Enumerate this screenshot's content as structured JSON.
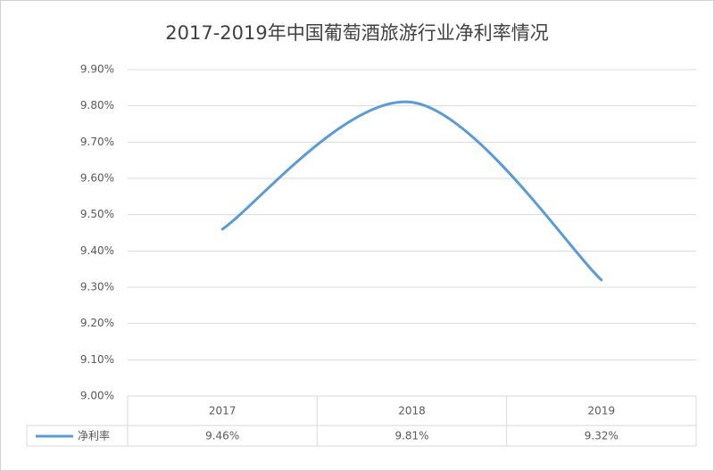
{
  "chart_data": {
    "type": "line",
    "title": "2017-2019年中国葡萄酒旅游行业净利率情况",
    "categories": [
      "2017",
      "2018",
      "2019"
    ],
    "series": [
      {
        "name": "净利率",
        "color": "#5b9bd5",
        "values": [
          9.46,
          9.81,
          9.32
        ],
        "value_labels": [
          "9.46%",
          "9.81%",
          "9.32%"
        ]
      }
    ],
    "ylim": [
      9.0,
      9.9
    ],
    "yticks": [
      {
        "value": 9.0,
        "label": "9.00%"
      },
      {
        "value": 9.1,
        "label": "9.10%"
      },
      {
        "value": 9.2,
        "label": "9.20%"
      },
      {
        "value": 9.3,
        "label": "9.30%"
      },
      {
        "value": 9.4,
        "label": "9.40%"
      },
      {
        "value": 9.5,
        "label": "9.50%"
      },
      {
        "value": 9.6,
        "label": "9.60%"
      },
      {
        "value": 9.7,
        "label": "9.70%"
      },
      {
        "value": 9.8,
        "label": "9.80%"
      },
      {
        "value": 9.9,
        "label": "9.90%"
      }
    ],
    "grid": true,
    "smooth": true
  }
}
